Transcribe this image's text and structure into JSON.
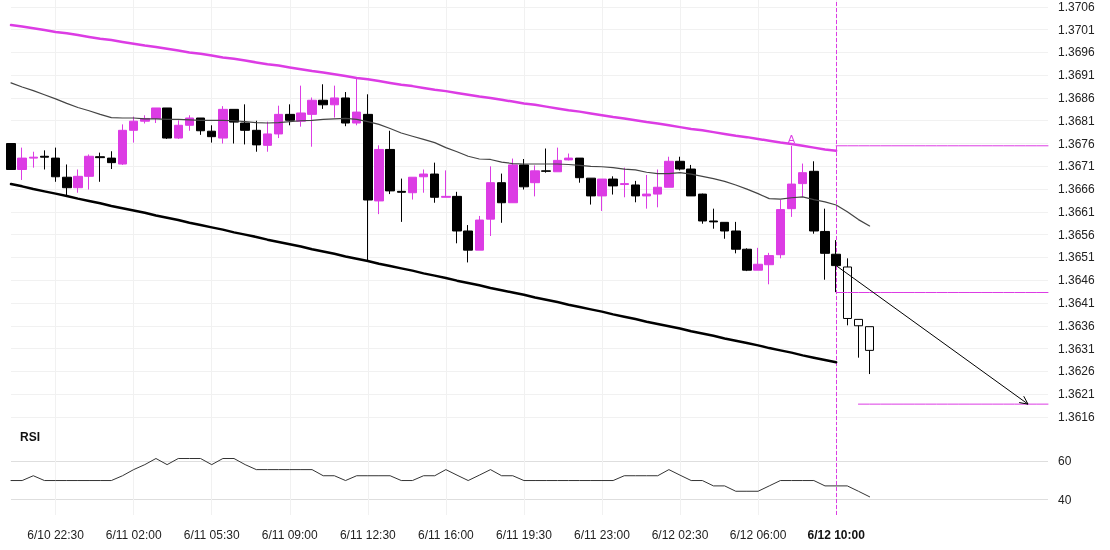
{
  "chart_data": [
    {
      "type": "candlestick",
      "categories": [
        null,
        null,
        null,
        null,
        "6/10 22:30",
        null,
        null,
        null,
        null,
        null,
        null,
        "6/11 02:00",
        null,
        null,
        null,
        null,
        null,
        null,
        "6/11 05:30",
        null,
        null,
        null,
        null,
        null,
        null,
        "6/11 09:00",
        null,
        null,
        null,
        null,
        null,
        null,
        "6/11 12:30",
        null,
        null,
        null,
        null,
        null,
        null,
        "6/11 16:00",
        null,
        null,
        null,
        null,
        null,
        null,
        "6/11 19:30",
        null,
        null,
        null,
        null,
        null,
        null,
        "6/11 23:00",
        null,
        null,
        null,
        null,
        null,
        null,
        "6/12 02:30",
        null,
        null,
        null,
        null,
        null,
        null,
        "6/12 06:00",
        null,
        null,
        null,
        null,
        null,
        null,
        "6/12 10:00",
        null,
        null,
        null,
        null,
        null,
        null,
        null,
        null,
        null,
        null,
        null,
        null,
        null,
        null,
        null,
        null,
        null,
        null,
        null
      ],
      "ohlc": [
        [
          1.3676,
          1.3676,
          1.36703,
          1.36703
        ],
        [
          1.36703,
          1.36751,
          1.3668,
          1.36728
        ],
        [
          1.36728,
          1.36742,
          1.36707,
          1.3673
        ],
        [
          1.36732,
          1.36745,
          1.36703,
          1.3673
        ],
        [
          1.36728,
          1.36751,
          1.36676,
          1.36687
        ],
        [
          1.36686,
          1.36714,
          1.36644,
          1.36663
        ],
        [
          1.36663,
          1.36703,
          1.36652,
          1.36688
        ],
        [
          1.36688,
          1.36736,
          1.36659,
          1.36732
        ],
        [
          1.36731,
          1.3674,
          1.36676,
          1.36729
        ],
        [
          1.36728,
          1.36743,
          1.36704,
          1.36718
        ],
        [
          1.36715,
          1.36802,
          1.36713,
          1.36789
        ],
        [
          1.36789,
          1.36819,
          1.36762,
          1.36809
        ],
        [
          1.36809,
          1.36822,
          1.36804,
          1.36815
        ],
        [
          1.36815,
          1.36838,
          1.36805,
          1.36838
        ],
        [
          1.36838,
          1.36838,
          1.3677,
          1.36772
        ],
        [
          1.36772,
          1.36811,
          1.3677,
          1.368
        ],
        [
          1.368,
          1.36822,
          1.36788,
          1.36816
        ],
        [
          1.36816,
          1.36816,
          1.36779,
          1.36788
        ],
        [
          1.36787,
          1.368,
          1.36762,
          1.36775
        ],
        [
          1.36772,
          1.36842,
          1.3676,
          1.36835
        ],
        [
          1.36835,
          1.36835,
          1.3676,
          1.36807
        ],
        [
          1.36805,
          1.36846,
          1.36758,
          1.36789
        ],
        [
          1.36789,
          1.3681,
          1.36742,
          1.36757
        ],
        [
          1.36756,
          1.36808,
          1.36742,
          1.36781
        ],
        [
          1.36781,
          1.36843,
          1.36772,
          1.36824
        ],
        [
          1.36824,
          1.36846,
          1.368,
          1.36811
        ],
        [
          1.36809,
          1.36887,
          1.36797,
          1.36827
        ],
        [
          1.36824,
          1.36861,
          1.36753,
          1.36855
        ],
        [
          1.36855,
          1.3689,
          1.36836,
          1.36845
        ],
        [
          1.36845,
          1.36887,
          1.36817,
          1.3686
        ],
        [
          1.3686,
          1.36873,
          1.36798,
          1.36805
        ],
        [
          1.36805,
          1.36903,
          1.368,
          1.36829
        ],
        [
          1.36824,
          1.36868,
          1.36502,
          1.36636
        ],
        [
          1.36634,
          1.36756,
          1.36605,
          1.36747
        ],
        [
          1.36747,
          1.36788,
          1.36649,
          1.36656
        ],
        [
          1.36655,
          1.36683,
          1.36588,
          1.36653
        ],
        [
          1.36652,
          1.36686,
          1.36637,
          1.36686
        ],
        [
          1.36687,
          1.36703,
          1.36652,
          1.36693
        ],
        [
          1.36693,
          1.36718,
          1.3663,
          1.36642
        ],
        [
          1.36642,
          1.36701,
          1.36642,
          1.36644
        ],
        [
          1.36644,
          1.36654,
          1.36541,
          1.36568
        ],
        [
          1.36568,
          1.36581,
          1.36499,
          1.36526
        ],
        [
          1.36526,
          1.36601,
          1.36526,
          1.36592
        ],
        [
          1.36594,
          1.3671,
          1.36557,
          1.36674
        ],
        [
          1.36674,
          1.36694,
          1.36586,
          1.3663
        ],
        [
          1.3663,
          1.36727,
          1.3663,
          1.36713
        ],
        [
          1.36713,
          1.36726,
          1.36659,
          1.36665
        ],
        [
          1.36674,
          1.36712,
          1.36644,
          1.367
        ],
        [
          1.367,
          1.36749,
          1.36696,
          1.36699
        ],
        [
          1.36698,
          1.36751,
          1.36698,
          1.36723
        ],
        [
          1.36724,
          1.36738,
          1.36723,
          1.36728
        ],
        [
          1.36728,
          1.36728,
          1.36674,
          1.36685
        ],
        [
          1.36684,
          1.36684,
          1.36626,
          1.36645
        ],
        [
          1.36645,
          1.36682,
          1.36612,
          1.36682
        ],
        [
          1.36682,
          1.36688,
          1.36648,
          1.36667
        ],
        [
          1.3667,
          1.36707,
          1.36642,
          1.36672
        ],
        [
          1.36669,
          1.36678,
          1.36631,
          1.36645
        ],
        [
          1.36645,
          1.36691,
          1.36617,
          1.36649
        ],
        [
          1.36649,
          1.36703,
          1.3662,
          1.36664
        ],
        [
          1.36664,
          1.36731,
          1.36664,
          1.36721
        ],
        [
          1.36721,
          1.36731,
          1.36701,
          1.36704
        ],
        [
          1.36704,
          1.36713,
          1.36645,
          1.36645
        ],
        [
          1.36649,
          1.3665,
          1.36584,
          1.3659
        ],
        [
          1.3659,
          1.36617,
          1.36573,
          1.36588
        ],
        [
          1.36587,
          1.36587,
          1.36551,
          1.36568
        ],
        [
          1.36568,
          1.36588,
          1.36519,
          1.36528
        ],
        [
          1.36528,
          1.3653,
          1.3648,
          1.36482
        ],
        [
          1.36482,
          1.36531,
          1.36482,
          1.36495
        ],
        [
          1.36494,
          1.3652,
          1.36451,
          1.36514
        ],
        [
          1.36516,
          1.36636,
          1.36508,
          1.36615
        ],
        [
          1.36617,
          1.36755,
          1.36599,
          1.36671
        ],
        [
          1.36672,
          1.36716,
          1.36643,
          1.36696
        ],
        [
          1.36699,
          1.36721,
          1.36562,
          1.36568
        ],
        [
          1.36567,
          1.36617,
          1.36461,
          1.36519
        ],
        [
          1.36517,
          1.36548,
          1.36434,
          1.36492
        ],
        [
          1.36489,
          1.36508,
          1.36361,
          1.36376
        ],
        [
          1.36374,
          1.36374,
          1.3629,
          1.3636
        ],
        [
          1.36358,
          1.36358,
          1.36254,
          1.36306
        ],
        null,
        null,
        null,
        null,
        null,
        null,
        null,
        null,
        null,
        null,
        null,
        null,
        null,
        null,
        null,
        null
      ],
      "colors": [
        "#000000",
        "#dc3ce4",
        "#dc3ce4",
        "#000000",
        "#000000",
        "#000000",
        "#dc3ce4",
        "#dc3ce4",
        "#000000",
        "#000000",
        "#dc3ce4",
        "#dc3ce4",
        "#dc3ce4",
        "#dc3ce4",
        "#000000",
        "#dc3ce4",
        "#dc3ce4",
        "#000000",
        "#000000",
        "#dc3ce4",
        "#000000",
        "#000000",
        "#000000",
        "#dc3ce4",
        "#dc3ce4",
        "#000000",
        "#dc3ce4",
        "#dc3ce4",
        "#000000",
        "#dc3ce4",
        "#000000",
        "#dc3ce4",
        "#000000",
        "#dc3ce4",
        "#000000",
        "#000000",
        "#dc3ce4",
        "#dc3ce4",
        "#000000",
        "#dc3ce4",
        "#000000",
        "#000000",
        "#dc3ce4",
        "#dc3ce4",
        "#000000",
        "#dc3ce4",
        "#000000",
        "#dc3ce4",
        "#000000",
        "#dc3ce4",
        "#dc3ce4",
        "#000000",
        "#000000",
        "#dc3ce4",
        "#000000",
        "#dc3ce4",
        "#000000",
        "#dc3ce4",
        "#dc3ce4",
        "#dc3ce4",
        "#000000",
        "#000000",
        "#000000",
        "#000000",
        "#000000",
        "#000000",
        "#000000",
        "#dc3ce4",
        "#dc3ce4",
        "#dc3ce4",
        "#dc3ce4",
        "#dc3ce4",
        "#000000",
        "#000000",
        "#000000",
        "#000000",
        "#000000",
        "#000000",
        null,
        null,
        null,
        null,
        null,
        null,
        null,
        null,
        null,
        null,
        null,
        null,
        null,
        null,
        null,
        null
      ],
      "series": [
        {
          "type": "line",
          "color": "#444444",
          "values": [
            1.36893,
            1.36884,
            1.36876,
            1.36867,
            1.36858,
            1.36848,
            1.36839,
            1.36832,
            1.36824,
            1.36817,
            1.36816,
            1.36816,
            1.36814,
            1.36814,
            1.36813,
            1.36813,
            1.36812,
            1.36811,
            1.36811,
            1.36811,
            1.3681,
            1.36808,
            1.36806,
            1.36805,
            1.36806,
            1.36808,
            1.3681,
            1.36811,
            1.36813,
            1.36814,
            1.36815,
            1.36813,
            1.36808,
            1.36802,
            1.36793,
            1.36783,
            1.36776,
            1.36769,
            1.36762,
            1.36751,
            1.36742,
            1.36732,
            1.36726,
            1.36725,
            1.36719,
            1.36716,
            1.36715,
            1.36715,
            1.36715,
            1.36715,
            1.36714,
            1.36712,
            1.3671,
            1.36709,
            1.36707,
            1.36704,
            1.36702,
            1.36697,
            1.36694,
            1.36694,
            1.36696,
            1.36693,
            1.36688,
            1.36683,
            1.36677,
            1.36669,
            1.3666,
            1.3665,
            1.36639,
            1.36638,
            1.36641,
            1.36643,
            1.36637,
            1.36632,
            1.36625,
            1.3661,
            1.36593,
            1.36579,
            null,
            null,
            null,
            null,
            null,
            null,
            null,
            null,
            null,
            null,
            null,
            null,
            null,
            null,
            null,
            null
          ]
        },
        {
          "type": "line",
          "color": "#dc3ce4",
          "values": [
            1.3702,
            1.37017,
            1.37013,
            1.37009,
            1.37005,
            1.37002,
            1.36998,
            1.36994,
            1.3699,
            1.36987,
            1.36983,
            1.36979,
            1.36975,
            1.36972,
            1.36968,
            1.36964,
            1.3696,
            1.36957,
            1.36953,
            1.36949,
            1.36946,
            1.36942,
            1.36938,
            1.36934,
            1.36931,
            1.36927,
            1.36923,
            1.36919,
            1.36916,
            1.36912,
            1.36908,
            1.36904,
            1.36901,
            1.36897,
            1.36893,
            1.36889,
            1.36886,
            1.36882,
            1.36878,
            1.36875,
            1.36871,
            1.36867,
            1.36863,
            1.3686,
            1.36856,
            1.36852,
            1.36848,
            1.36845,
            1.36841,
            1.36837,
            1.36833,
            1.3683,
            1.36826,
            1.36822,
            1.36818,
            1.36815,
            1.36811,
            1.36807,
            1.36804,
            1.368,
            1.36796,
            1.36792,
            1.36789,
            1.36785,
            1.36781,
            1.36777,
            1.36774,
            1.3677,
            1.36766,
            1.36762,
            1.36759,
            1.36755,
            1.36751,
            1.36747,
            1.36744,
            null,
            null,
            null,
            null,
            null,
            null,
            null,
            null,
            null,
            null,
            null,
            null,
            null,
            null,
            null,
            null,
            null,
            null,
            null
          ]
        },
        {
          "type": "line",
          "color": "#000000",
          "values": [
            1.36671,
            1.36666,
            1.3666,
            1.36655,
            1.3665,
            1.36645,
            1.36639,
            1.36634,
            1.36629,
            1.36623,
            1.36618,
            1.36613,
            1.36608,
            1.36602,
            1.36597,
            1.36592,
            1.36586,
            1.36581,
            1.36576,
            1.36571,
            1.36565,
            1.3656,
            1.36555,
            1.36549,
            1.36544,
            1.36539,
            1.36534,
            1.36528,
            1.36523,
            1.36518,
            1.36512,
            1.36507,
            1.36502,
            1.36496,
            1.36491,
            1.36486,
            1.36481,
            1.36475,
            1.3647,
            1.36465,
            1.36459,
            1.36454,
            1.36449,
            1.36443,
            1.36438,
            1.36433,
            1.36428,
            1.36422,
            1.36417,
            1.36412,
            1.36406,
            1.36401,
            1.36396,
            1.36391,
            1.36385,
            1.3638,
            1.36375,
            1.36369,
            1.36364,
            1.36359,
            1.36354,
            1.36348,
            1.36343,
            1.36338,
            1.36332,
            1.36327,
            1.36322,
            1.36317,
            1.36311,
            1.36306,
            1.36301,
            1.36295,
            1.3629,
            1.36285,
            1.3628,
            null,
            null,
            null,
            null,
            null,
            null,
            null,
            null,
            null,
            null,
            null,
            null,
            null,
            null,
            null,
            null,
            null,
            null,
            null
          ]
        },
        {
          "type": "line",
          "color": "#dc3ce4",
          "values": [
            null,
            null,
            null,
            null,
            null,
            null,
            null,
            null,
            null,
            null,
            null,
            null,
            null,
            null,
            null,
            null,
            null,
            null,
            null,
            null,
            null,
            null,
            null,
            null,
            null,
            null,
            null,
            null,
            null,
            null,
            null,
            null,
            null,
            null,
            null,
            null,
            null,
            null,
            null,
            null,
            null,
            null,
            null,
            null,
            null,
            null,
            null,
            null,
            null,
            null,
            null,
            null,
            null,
            null,
            null,
            null,
            null,
            null,
            null,
            null,
            null,
            null,
            null,
            null,
            null,
            null,
            null,
            null,
            null,
            null,
            null,
            null,
            null,
            null,
            1.36755,
            1.36755,
            1.36755,
            1.36755,
            1.36755,
            1.36755,
            1.36755,
            1.36755,
            1.36755,
            1.36755,
            1.36755,
            1.36755,
            1.36755,
            1.36755,
            1.36755,
            1.36755,
            1.36755,
            1.36755,
            1.36755,
            1.36755
          ]
        },
        {
          "type": "line",
          "color": "#dc3ce4",
          "values": [
            null,
            null,
            null,
            null,
            null,
            null,
            null,
            null,
            null,
            null,
            null,
            null,
            null,
            null,
            null,
            null,
            null,
            null,
            null,
            null,
            null,
            null,
            null,
            null,
            null,
            null,
            null,
            null,
            null,
            null,
            null,
            null,
            null,
            null,
            null,
            null,
            null,
            null,
            null,
            null,
            null,
            null,
            null,
            null,
            null,
            null,
            null,
            null,
            null,
            null,
            null,
            null,
            null,
            null,
            null,
            null,
            null,
            null,
            null,
            null,
            null,
            null,
            null,
            null,
            null,
            null,
            null,
            null,
            null,
            null,
            null,
            null,
            null,
            null,
            1.36433,
            1.36433,
            1.36433,
            1.36433,
            1.36433,
            1.36433,
            1.36433,
            1.36433,
            1.36433,
            1.36433,
            1.36433,
            1.36433,
            1.36433,
            1.36433,
            1.36433,
            1.36433,
            1.36433,
            1.36433,
            1.36433,
            1.36433
          ]
        },
        {
          "type": "line",
          "color": "#dc3ce4",
          "values": [
            null,
            null,
            null,
            null,
            null,
            null,
            null,
            null,
            null,
            null,
            null,
            null,
            null,
            null,
            null,
            null,
            null,
            null,
            null,
            null,
            null,
            null,
            null,
            null,
            null,
            null,
            null,
            null,
            null,
            null,
            null,
            null,
            null,
            null,
            null,
            null,
            null,
            null,
            null,
            null,
            null,
            null,
            null,
            null,
            null,
            null,
            null,
            null,
            null,
            null,
            null,
            null,
            null,
            null,
            null,
            null,
            null,
            null,
            null,
            null,
            null,
            null,
            null,
            null,
            null,
            null,
            null,
            null,
            null,
            null,
            null,
            null,
            null,
            null,
            null,
            null,
            1.36188,
            1.36188,
            1.36188,
            1.36188,
            1.36188,
            1.36188,
            1.36188,
            1.36188,
            1.36188,
            1.36188,
            1.36188,
            1.36188,
            1.36188,
            1.36188,
            1.36188,
            1.36188,
            1.36188,
            1.36188
          ]
        }
      ],
      "ylim": [
        1.3614,
        1.37075
      ],
      "yticks": [
        1.3616,
        1.3621,
        1.3626,
        1.3631,
        1.3636,
        1.3641,
        1.3646,
        1.3651,
        1.3656,
        1.3661,
        1.3666,
        1.3671,
        1.3676,
        1.3681,
        1.3686,
        1.3691,
        1.3696,
        1.3701,
        1.3706
      ],
      "grid": true,
      "tick_labels": "y",
      "ref_lines": [
        {
          "axis": "x",
          "value": "6/12 10:00",
          "color": "#dc3ce4",
          "line_style": "dashed"
        }
      ],
      "annotations": [
        {
          "text": "A",
          "y": 1.36755
        }
      ]
    },
    {
      "type": "line",
      "title": "RSI",
      "categories": [
        null,
        null,
        null,
        null,
        "6/10 22:30",
        null,
        null,
        null,
        null,
        null,
        null,
        "6/11 02:00",
        null,
        null,
        null,
        null,
        null,
        null,
        "6/11 05:30",
        null,
        null,
        null,
        null,
        null,
        null,
        "6/11 09:00",
        null,
        null,
        null,
        null,
        null,
        null,
        "6/11 12:30",
        null,
        null,
        null,
        null,
        null,
        null,
        "6/11 16:00",
        null,
        null,
        null,
        null,
        null,
        null,
        "6/11 19:30",
        null,
        null,
        null,
        null,
        null,
        null,
        "6/11 23:00",
        null,
        null,
        null,
        null,
        null,
        null,
        "6/12 02:30",
        null,
        null,
        null,
        null,
        null,
        null,
        "6/12 06:00",
        null,
        null,
        null,
        null,
        null,
        null,
        "6/12 10:00",
        null,
        null,
        null,
        null,
        null,
        null,
        null,
        null,
        null,
        null,
        null,
        null,
        null,
        null,
        null,
        null,
        null,
        null,
        null
      ],
      "values": [
        50,
        50,
        52.5,
        50,
        50,
        50,
        50,
        50,
        50,
        50,
        52.5,
        55.7,
        58.3,
        61.5,
        58.3,
        61.5,
        61.5,
        61.5,
        58.3,
        61.5,
        61.5,
        58.3,
        55.7,
        55.7,
        55.7,
        55.7,
        55.7,
        55.7,
        52.5,
        52.5,
        50,
        52.5,
        52.5,
        52.5,
        52.5,
        50,
        50,
        52.5,
        52.5,
        55.7,
        52.8,
        50,
        52.8,
        55.7,
        52.5,
        52.5,
        50,
        50,
        50,
        50,
        50,
        50,
        50,
        50,
        50,
        52.5,
        52.5,
        52.5,
        52.5,
        55.7,
        52.8,
        50,
        50,
        47.2,
        47.2,
        44.4,
        44.4,
        44.4,
        47.2,
        50,
        50,
        50,
        50,
        47.2,
        47.2,
        47.2,
        44.4,
        41.5,
        null,
        null,
        null,
        null,
        null,
        null,
        null,
        null,
        null,
        null,
        null,
        null,
        null,
        null,
        null,
        null
      ],
      "color": "#333333",
      "ylim": [
        32,
        79
      ],
      "yticks": [
        40,
        60
      ],
      "grid": true,
      "ref_lines": [
        {
          "axis": "x",
          "value": "6/12 10:00",
          "color": "#dc3ce4",
          "line_style": "dashed"
        }
      ]
    }
  ]
}
